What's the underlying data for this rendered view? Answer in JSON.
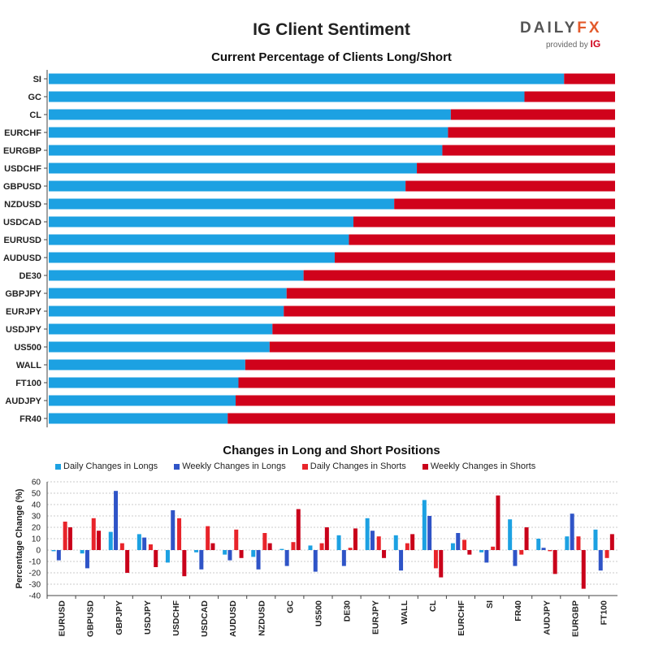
{
  "header": {
    "title": "IG Client Sentiment",
    "logo_prefix": "DAILY",
    "logo_suffix": "FX",
    "logo_provided": "provided by",
    "logo_ig": "IG"
  },
  "colors": {
    "long": "#1ca1e2",
    "short": "#d0021b",
    "daily_long": "#1ca1e2",
    "weekly_long": "#2f54c7",
    "daily_short": "#e8242a",
    "weekly_short": "#c9001a"
  },
  "chart_data": [
    {
      "type": "bar",
      "orientation": "horizontal-stacked",
      "title": "Current Percentage of Clients Long/Short",
      "categories": [
        "SI",
        "GC",
        "CL",
        "EURCHF",
        "EURGBP",
        "USDCHF",
        "GBPUSD",
        "NZDUSD",
        "USDCAD",
        "EURUSD",
        "AUDUSD",
        "DE30",
        "GBPJPY",
        "EURJPY",
        "USDJPY",
        "US500",
        "WALL",
        "FT100",
        "AUDJPY",
        "FR40"
      ],
      "series": [
        {
          "name": "Long",
          "values": [
            91,
            84,
            71,
            70.5,
            69.5,
            65,
            63,
            61,
            53.8,
            53,
            50.5,
            45,
            42,
            41.5,
            39.5,
            39,
            34.7,
            33.5,
            33,
            31.6
          ]
        },
        {
          "name": "Short",
          "values": [
            9,
            16,
            29,
            29.5,
            30.5,
            35,
            37,
            39,
            46.2,
            47,
            49.5,
            55,
            58,
            58.5,
            60.5,
            61,
            65.3,
            66.5,
            67,
            68.4
          ]
        }
      ],
      "xlim": [
        0,
        100
      ]
    },
    {
      "type": "bar",
      "title": "Changes in Long and Short Positions",
      "ylabel": "Percentage Change (%)",
      "xlabel": "",
      "ylim": [
        -40,
        60
      ],
      "yticks": [
        -40,
        -30,
        -20,
        -10,
        0,
        10,
        20,
        30,
        40,
        50,
        60
      ],
      "categories": [
        "EURUSD",
        "GBPUSD",
        "GBPJPY",
        "USDJPY",
        "USDCHF",
        "USDCAD",
        "AUDUSD",
        "NZDUSD",
        "GC",
        "US500",
        "DE30",
        "EURJPY",
        "WALL",
        "CL",
        "EURCHF",
        "SI",
        "FR40",
        "AUDJPY",
        "EURGBP",
        "FT100"
      ],
      "series": [
        {
          "name": "Daily Changes in Longs",
          "values": [
            -1,
            -3,
            16,
            14,
            -11,
            -2,
            -4,
            -6,
            1,
            4,
            13,
            28,
            13,
            44,
            6,
            -2,
            27,
            10,
            12,
            18
          ]
        },
        {
          "name": "Weekly Changes in Longs",
          "values": [
            -9,
            -16,
            52,
            11,
            35,
            -17,
            -9,
            -17,
            -14,
            -19,
            -14,
            17,
            -18,
            30,
            15,
            -11,
            -14,
            2,
            32,
            -18
          ]
        },
        {
          "name": "Daily Changes in Shorts",
          "values": [
            25,
            28,
            6,
            5,
            28,
            21,
            18,
            15,
            7,
            6,
            2,
            12,
            6,
            -16,
            9,
            3,
            -4,
            -1,
            12,
            -7
          ]
        },
        {
          "name": "Weekly Changes in Shorts",
          "values": [
            20,
            17,
            -20,
            -15,
            -23,
            6,
            -7,
            6,
            36,
            20,
            19,
            -7,
            14,
            -24,
            -4,
            48,
            20,
            -21,
            -34,
            14
          ]
        }
      ]
    }
  ]
}
